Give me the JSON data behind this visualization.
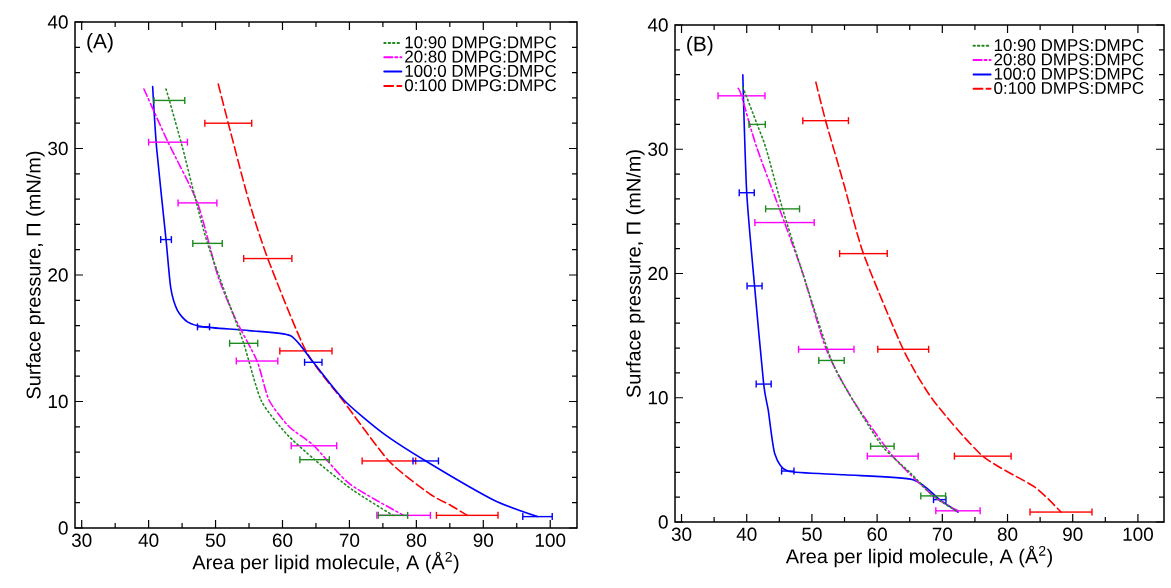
{
  "chart_data": [
    {
      "type": "line",
      "xlabel": "Area per lipid molecule, A (Å$^{2}$)",
      "ylabel": "Surface pressure, Π (mN/m)",
      "annotations": [
        "(A)"
      ],
      "xlim": [
        29,
        104
      ],
      "ylim": [
        0,
        40
      ],
      "xticks": [
        30,
        40,
        50,
        60,
        70,
        80,
        90,
        100
      ],
      "yticks": [
        0,
        10,
        20,
        30,
        40
      ],
      "legend": "top right",
      "series": [
        {
          "name": "10:90 DMPG:DMPC",
          "color": "#1f8a1f",
          "line_style": "dotted",
          "x": [
            42.6,
            43.1,
            45.1,
            47.0,
            48.8,
            51.5,
            54.2,
            56.8,
            60.5,
            64.8,
            70.5,
            76.5
          ],
          "values": [
            34.7,
            33.8,
            30.0,
            26.0,
            22.5,
            18.5,
            14.6,
            10.1,
            7.5,
            5.4,
            3.0,
            1.0
          ],
          "xerrors": [
            null,
            2.3,
            null,
            null,
            2.2,
            null,
            2.1,
            null,
            null,
            2.2,
            null,
            2.2
          ]
        },
        {
          "name": "20:80 DMPG:DMPC",
          "color": "#ff00ff",
          "line_style": "dashdot",
          "x": [
            39.3,
            42.9,
            47.3,
            50.3,
            53.0,
            56.2,
            58.0,
            61.0,
            64.7,
            70.0,
            78.1
          ],
          "values": [
            34.7,
            30.5,
            25.7,
            20.0,
            16.5,
            13.2,
            10.1,
            8.0,
            6.5,
            3.5,
            1.0
          ],
          "xerrors": [
            null,
            2.9,
            2.9,
            null,
            null,
            3.1,
            null,
            null,
            3.4,
            null,
            4.0
          ]
        },
        {
          "name": "100:0 DMPG:DMPC",
          "color": "#0000ff",
          "line_style": "solid",
          "x": [
            40.6,
            41.2,
            42.6,
            43.3,
            44.3,
            45.8,
            48.2,
            55.0,
            61.2,
            64.6,
            69.2,
            75.0,
            81.4,
            91.6,
            98.1
          ],
          "values": [
            34.9,
            30.0,
            22.8,
            19.0,
            17.2,
            16.3,
            15.9,
            15.6,
            15.2,
            13.1,
            10.1,
            7.5,
            5.3,
            2.2,
            0.9
          ],
          "xerrors": [
            null,
            null,
            0.8,
            null,
            null,
            null,
            0.9,
            null,
            null,
            1.3,
            null,
            null,
            1.9,
            null,
            2.2
          ]
        },
        {
          "name": "0:100 DMPG:DMPC",
          "color": "#ff0000",
          "line_style": "dashed",
          "x": [
            50.4,
            51.9,
            54.9,
            57.8,
            63.5,
            69.0,
            75.9,
            82.0,
            85.1,
            87.6
          ],
          "values": [
            35.1,
            32.0,
            26.0,
            21.3,
            14.0,
            10.1,
            5.3,
            2.7,
            1.8,
            1.0
          ],
          "xerrors": [
            null,
            3.5,
            null,
            3.6,
            3.9,
            null,
            4.0,
            null,
            null,
            4.6
          ]
        }
      ]
    },
    {
      "type": "line",
      "xlabel": "Area per lipid molecule, A (Å$^{2}$)",
      "ylabel": "Surface pressure, Π (mN/m)",
      "annotations": [
        "(B)"
      ],
      "xlim": [
        29,
        104
      ],
      "ylim": [
        0,
        40
      ],
      "xticks": [
        30,
        40,
        50,
        60,
        70,
        80,
        90,
        100
      ],
      "yticks": [
        0,
        10,
        20,
        30,
        40
      ],
      "legend": "top right",
      "series": [
        {
          "name": "10:90 DMPS:DMPC",
          "color": "#1f8a1f",
          "line_style": "dotted",
          "x": [
            39.4,
            41.6,
            43.0,
            45.5,
            48.6,
            53.0,
            56.3,
            60.8,
            65.0,
            68.6,
            72.4
          ],
          "values": [
            35.0,
            32.0,
            30.0,
            25.2,
            20.0,
            13.0,
            9.8,
            6.1,
            4.0,
            2.1,
            0.8
          ],
          "xerrors": [
            null,
            1.25,
            null,
            2.6,
            null,
            1.95,
            null,
            1.8,
            null,
            1.9,
            null
          ]
        },
        {
          "name": "20:80 DMPS:DMPC",
          "color": "#ff00ff",
          "line_style": "dashdot",
          "x": [
            38.7,
            39.2,
            41.5,
            45.8,
            48.6,
            52.2,
            56.3,
            62.4,
            68.6,
            72.4
          ],
          "values": [
            34.9,
            34.3,
            30.2,
            24.1,
            20.0,
            13.9,
            9.8,
            5.3,
            2.1,
            0.9
          ],
          "xerrors": [
            null,
            3.6,
            null,
            4.55,
            null,
            4.25,
            null,
            3.9,
            null,
            3.4
          ]
        },
        {
          "name": "100:0 DMPS:DMPC",
          "color": "#0000ff",
          "line_style": "solid",
          "x": [
            39.4,
            40.0,
            41.2,
            42.6,
            43.3,
            44.3,
            46.3,
            55.0,
            65.5,
            69.6,
            72.4
          ],
          "values": [
            36.0,
            26.5,
            19.0,
            11.1,
            9.0,
            5.5,
            4.1,
            3.8,
            3.4,
            1.8,
            0.8
          ],
          "xerrors": [
            null,
            1.15,
            1.15,
            1.15,
            null,
            null,
            0.95,
            null,
            null,
            0.95,
            null
          ]
        },
        {
          "name": "0:100 DMPS:DMPC",
          "color": "#ff0000",
          "line_style": "dashed",
          "x": [
            50.6,
            52.1,
            55.0,
            57.9,
            64.0,
            68.6,
            76.2,
            84.2,
            88.2
          ],
          "values": [
            35.4,
            32.3,
            27.0,
            21.6,
            13.9,
            9.8,
            5.3,
            2.8,
            0.8
          ],
          "xerrors": [
            null,
            3.5,
            null,
            3.65,
            3.9,
            null,
            4.35,
            null,
            4.75
          ]
        }
      ]
    }
  ]
}
